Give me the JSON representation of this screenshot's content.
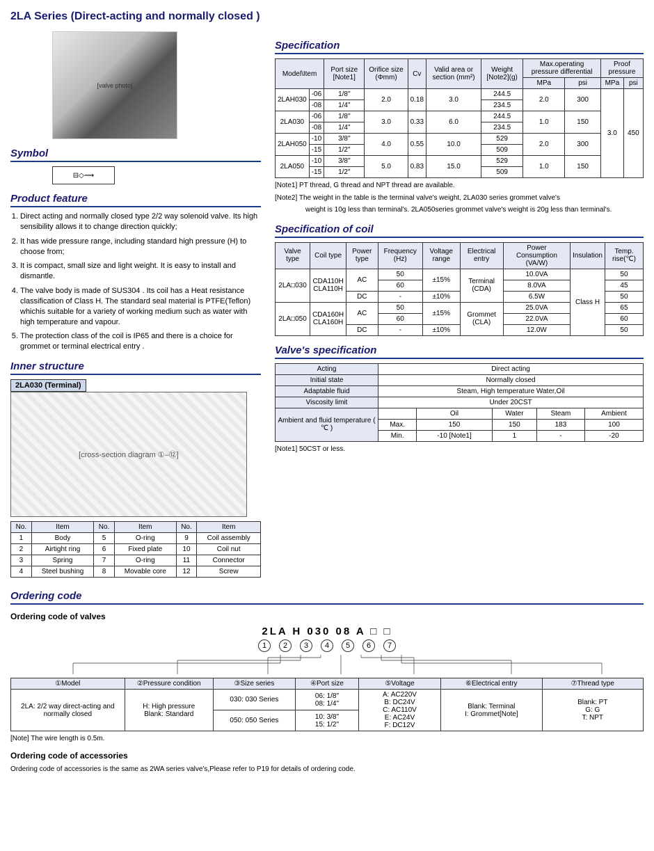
{
  "title": "2LA Series (Direct-acting and normally closed )",
  "symbol_heading": "Symbol",
  "symbol_glyph": "⊟◇⟿",
  "product_feature_heading": "Product feature",
  "features": [
    "Direct acting and normally closed type 2/2 way solenoid valve. Its high sensibility allows it to change direction quickly;",
    "It has wide pressure range, including standard high pressure (H) to choose from;",
    "It is compact, small size and light weight. It is easy to install and dismantle.",
    "The valve body is made of SUS304 . Its coil has a Heat resistance classification of Class H. The standard seal material is PTFE(Teflon) whichis suitable for a variety of working medium such as water with high temperature and vapour.",
    "The protection class of the coil is IP65 and there is a choice for grommet or terminal electrical entry ."
  ],
  "inner_heading": "Inner structure",
  "inner_label": "2LA030 (Terminal)",
  "inner_parts_header_no": "No.",
  "inner_parts_header_item": "Item",
  "inner_parts": [
    [
      "1",
      "Body"
    ],
    [
      "2",
      "Airtight ring"
    ],
    [
      "3",
      "Spring"
    ],
    [
      "4",
      "Steel bushing"
    ],
    [
      "5",
      "O-ring"
    ],
    [
      "6",
      "Fixed plate"
    ],
    [
      "7",
      "O-ring"
    ],
    [
      "8",
      "Movable core"
    ],
    [
      "9",
      "Coil assembly"
    ],
    [
      "10",
      "Coil nut"
    ],
    [
      "11",
      "Connector"
    ],
    [
      "12",
      "Screw"
    ]
  ],
  "spec_heading": "Specification",
  "spec_headers": {
    "model": "Model\\Item",
    "port": "Port size [Note1]",
    "orifice": "Orifice size (Φmm)",
    "cv": "Cv",
    "valid": "Valid area or section (mm²)",
    "weight": "Weight [Note2](g)",
    "maxop": "Max.operating pressure differential",
    "proof": "Proof pressure",
    "mpa": "MPa",
    "psi": "psi"
  },
  "spec_rows": [
    {
      "model": "2LAH030",
      "sub": [
        {
          "c": "-06",
          "p": "1/8\"",
          "w": "244.5"
        },
        {
          "c": "-08",
          "p": "1/4\"",
          "w": "234.5"
        }
      ],
      "orifice": "2.0",
      "cv": "0.18",
      "valid": "3.0",
      "mpa": "2.0",
      "psi": "300"
    },
    {
      "model": "2LA030",
      "sub": [
        {
          "c": "-06",
          "p": "1/8\"",
          "w": "244.5"
        },
        {
          "c": "-08",
          "p": "1/4\"",
          "w": "234.5"
        }
      ],
      "orifice": "3.0",
      "cv": "0.33",
      "valid": "6.0",
      "mpa": "1.0",
      "psi": "150"
    },
    {
      "model": "2LAH050",
      "sub": [
        {
          "c": "-10",
          "p": "3/8\"",
          "w": "529"
        },
        {
          "c": "-15",
          "p": "1/2\"",
          "w": "509"
        }
      ],
      "orifice": "4.0",
      "cv": "0.55",
      "valid": "10.0",
      "mpa": "2.0",
      "psi": "300"
    },
    {
      "model": "2LA050",
      "sub": [
        {
          "c": "-10",
          "p": "3/8\"",
          "w": "529"
        },
        {
          "c": "-15",
          "p": "1/2\"",
          "w": "509"
        }
      ],
      "orifice": "5.0",
      "cv": "0.83",
      "valid": "15.0",
      "mpa": "1.0",
      "psi": "150"
    }
  ],
  "spec_proof_mpa": "3.0",
  "spec_proof_psi": "450",
  "spec_note1": "[Note1] PT thread, G thread and NPT thread are available.",
  "spec_note2a": "[Note2] The weight in the table is the terminal valve's weight, 2LA030 series grommet valve's",
  "spec_note2b": "weight is 10g less than terminal's. 2LA050series grommet valve's weight is 20g less than terminal's.",
  "coil_heading": "Specification of coil",
  "coil_headers": {
    "valve": "Valve type",
    "coil": "Coil type",
    "power": "Power type",
    "freq": "Frequency (Hz)",
    "voltage": "Voltage range",
    "entry": "Electrical entry",
    "cons": "Power Consumption (VA/W)",
    "ins": "Insulation",
    "temp": "Temp. rise(℃)"
  },
  "coil_rows": [
    {
      "valve": "2LA□030",
      "coil": "CDA110H CLA110H",
      "lines": [
        {
          "pt": "AC",
          "f": "50",
          "v": "±15%",
          "e": "Terminal (CDA)",
          "c": "10.0VA",
          "t": "50"
        },
        {
          "pt": "",
          "f": "60",
          "v": "",
          "e": "",
          "c": "8.0VA",
          "t": "45"
        },
        {
          "pt": "DC",
          "f": "-",
          "v": "±10%",
          "e": "",
          "c": "6.5W",
          "t": "50"
        }
      ]
    },
    {
      "valve": "2LA□050",
      "coil": "CDA160H CLA160H",
      "lines": [
        {
          "pt": "AC",
          "f": "50",
          "v": "±15%",
          "e": "Grommet (CLA)",
          "c": "25.0VA",
          "t": "65"
        },
        {
          "pt": "",
          "f": "60",
          "v": "",
          "e": "",
          "c": "22.0VA",
          "t": "60"
        },
        {
          "pt": "DC",
          "f": "-",
          "v": "±10%",
          "e": "",
          "c": "12.0W",
          "t": "50"
        }
      ]
    }
  ],
  "coil_insulation": "Class H",
  "vspec_heading": "Valve's specification",
  "vspec": {
    "acting_l": "Acting",
    "acting_v": "Direct acting",
    "init_l": "Initial state",
    "init_v": "Normally closed",
    "fluid_l": "Adaptable fluid",
    "fluid_v": "Steam, High temperature Water,Oil",
    "visc_l": "Viscosity limit",
    "visc_v": "Under 20CST",
    "amb_l": "Ambient and fluid temperature ( ℃ )",
    "cols": [
      "",
      "Oil",
      "Water",
      "Steam",
      "Ambient"
    ],
    "max": [
      "Max.",
      "150",
      "150",
      "183",
      "100"
    ],
    "min": [
      "Min.",
      "-10  [Note1]",
      "1",
      "-",
      "-20"
    ]
  },
  "vspec_note": "[Note1] 50CST or less.",
  "ordering_heading": "Ordering code",
  "ordering_sub1": "Ordering code of valves",
  "order_code": "2LA  H  030  08  A  □  □",
  "order_table": {
    "h": [
      "①Model",
      "②Pressure condition",
      "③Size series",
      "④Port size",
      "⑤Voltage",
      "⑥Electrical entry",
      "⑦Thread type"
    ],
    "r1": [
      "2LA: 2/2 way direct-acting and normally closed",
      "H: High pressure\nBlank: Standard",
      "030: 030 Series",
      "06: 1/8\"\n08: 1/4\"",
      "A: AC220V\nB: DC24V\nC: AC110V\nE: AC24V\nF: DC12V",
      "Blank: Terminal\nI: Grommet[Note]",
      "Blank: PT\nG: G\nT: NPT"
    ],
    "r2": [
      "",
      "",
      "050: 050 Series",
      "10: 3/8\"\n15: 1/2\"",
      "",
      "",
      ""
    ]
  },
  "order_note": "[Note] The wire length is 0.5m.",
  "ordering_sub2": "Ordering code of accessories",
  "order_acc_text": "Ordering code of accessories is the same as 2WA series valve's,Please refer to P19  for details  of ordering code."
}
